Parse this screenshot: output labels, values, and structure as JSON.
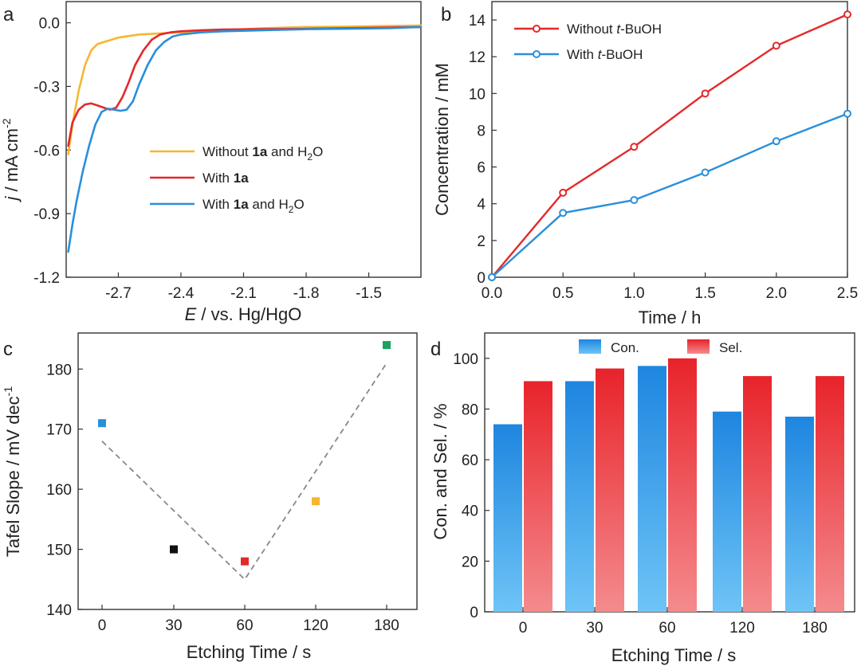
{
  "chart_data": [
    {
      "panel": "a",
      "type": "line",
      "xlabel": "E / vs. Hg/HgO",
      "ylabel": "j / mA cm-2",
      "xlim": [
        -2.95,
        -1.25
      ],
      "ylim": [
        -1.2,
        0.1
      ],
      "x_ticks": [
        -2.7,
        -2.4,
        -2.1,
        -1.8,
        -1.5
      ],
      "y_ticks": [
        0.0,
        -0.3,
        -0.6,
        -0.9,
        -1.2
      ],
      "x_tick_labels": [
        "-2.7",
        "-2.4",
        "-2.1",
        "-1.8",
        "-1.5"
      ],
      "y_tick_labels": [
        "0.0",
        "-0.3",
        "-0.6",
        "-0.9",
        "-1.2"
      ],
      "legend_position": "center-right",
      "series": [
        {
          "name": "Without 1a and H2O",
          "color": "#F5B731",
          "x": [
            -2.94,
            -2.92,
            -2.89,
            -2.86,
            -2.83,
            -2.8,
            -2.75,
            -2.7,
            -2.6,
            -2.5,
            -2.4,
            -2.2,
            -2.0,
            -1.8,
            -1.6,
            -1.4,
            -1.25
          ],
          "y": [
            -0.62,
            -0.48,
            -0.32,
            -0.2,
            -0.13,
            -0.1,
            -0.085,
            -0.07,
            -0.055,
            -0.05,
            -0.045,
            -0.035,
            -0.025,
            -0.02,
            -0.018,
            -0.015,
            -0.013
          ]
        },
        {
          "name": "With 1a",
          "color": "#E3292B",
          "x": [
            -2.94,
            -2.92,
            -2.89,
            -2.86,
            -2.83,
            -2.8,
            -2.77,
            -2.74,
            -2.71,
            -2.68,
            -2.65,
            -2.62,
            -2.58,
            -2.54,
            -2.5,
            -2.45,
            -2.4,
            -2.3,
            -2.2,
            -2.0,
            -1.8,
            -1.6,
            -1.4,
            -1.25
          ],
          "y": [
            -0.58,
            -0.47,
            -0.41,
            -0.385,
            -0.38,
            -0.39,
            -0.4,
            -0.41,
            -0.4,
            -0.35,
            -0.28,
            -0.2,
            -0.13,
            -0.08,
            -0.055,
            -0.045,
            -0.04,
            -0.035,
            -0.032,
            -0.03,
            -0.028,
            -0.025,
            -0.022,
            -0.02
          ]
        },
        {
          "name": "With 1a and H2O",
          "color": "#2A8FDB",
          "x": [
            -2.94,
            -2.92,
            -2.9,
            -2.87,
            -2.84,
            -2.81,
            -2.78,
            -2.75,
            -2.72,
            -2.69,
            -2.66,
            -2.63,
            -2.6,
            -2.56,
            -2.52,
            -2.48,
            -2.44,
            -2.4,
            -2.3,
            -2.2,
            -2.0,
            -1.8,
            -1.6,
            -1.4,
            -1.25
          ],
          "y": [
            -1.08,
            -0.95,
            -0.84,
            -0.7,
            -0.58,
            -0.48,
            -0.42,
            -0.405,
            -0.41,
            -0.415,
            -0.41,
            -0.37,
            -0.29,
            -0.2,
            -0.13,
            -0.09,
            -0.065,
            -0.055,
            -0.045,
            -0.04,
            -0.035,
            -0.03,
            -0.028,
            -0.025,
            -0.02
          ]
        }
      ]
    },
    {
      "panel": "b",
      "type": "line",
      "xlabel": "Time / h",
      "ylabel": "Concentration / mM",
      "xlim": [
        0.0,
        2.5
      ],
      "ylim": [
        0,
        15
      ],
      "x_ticks": [
        0.0,
        0.5,
        1.0,
        1.5,
        2.0,
        2.5
      ],
      "y_ticks": [
        0,
        2,
        4,
        6,
        8,
        10,
        12,
        14
      ],
      "x_tick_labels": [
        "0.0",
        "0.5",
        "1.0",
        "1.5",
        "2.0",
        "2.5"
      ],
      "y_tick_labels": [
        "0",
        "2",
        "4",
        "6",
        "8",
        "10",
        "12",
        "14"
      ],
      "legend_position": "top-left",
      "series": [
        {
          "name": "Without t-BuOH",
          "color": "#E3292B",
          "x": [
            0.0,
            0.5,
            1.0,
            1.5,
            2.0,
            2.5
          ],
          "y": [
            0.0,
            4.6,
            7.1,
            10.0,
            12.6,
            14.3
          ]
        },
        {
          "name": "With t-BuOH",
          "color": "#2A8FDB",
          "x": [
            0.0,
            0.5,
            1.0,
            1.5,
            2.0,
            2.5
          ],
          "y": [
            0.0,
            3.5,
            4.2,
            5.7,
            7.4,
            8.9
          ]
        }
      ]
    },
    {
      "panel": "c",
      "type": "scatter",
      "xlabel": "Etching Time / s",
      "ylabel": "Tafel Slope / mV dec-1",
      "ylim": [
        140,
        186
      ],
      "y_ticks": [
        140,
        150,
        160,
        170,
        180
      ],
      "y_tick_labels": [
        "140",
        "150",
        "160",
        "170",
        "180"
      ],
      "categories": [
        "0",
        "30",
        "60",
        "120",
        "180"
      ],
      "values": [
        171,
        150,
        148,
        158,
        184
      ],
      "point_colors": [
        "#2A8FDB",
        "#111111",
        "#E3292B",
        "#F5B731",
        "#1AA35C"
      ],
      "trend_line": {
        "color": "#888888",
        "x_index": [
          0,
          2,
          4
        ],
        "y": [
          168,
          145,
          181
        ]
      }
    },
    {
      "panel": "d",
      "type": "bar",
      "xlabel": "Etching Time / s",
      "ylabel": "Con. and Sel. / %",
      "ylim": [
        0,
        110
      ],
      "y_ticks": [
        0,
        20,
        40,
        60,
        80,
        100
      ],
      "y_tick_labels": [
        "0",
        "20",
        "40",
        "60",
        "80",
        "100"
      ],
      "categories": [
        "0",
        "30",
        "60",
        "120",
        "180"
      ],
      "legend_position": "top-center",
      "series": [
        {
          "name": "Con.",
          "color": "#2A8FDB",
          "values": [
            74,
            91,
            97,
            79,
            77
          ]
        },
        {
          "name": "Sel.",
          "color": "#E8292B",
          "values": [
            91,
            96,
            100,
            93,
            93
          ]
        }
      ]
    }
  ]
}
